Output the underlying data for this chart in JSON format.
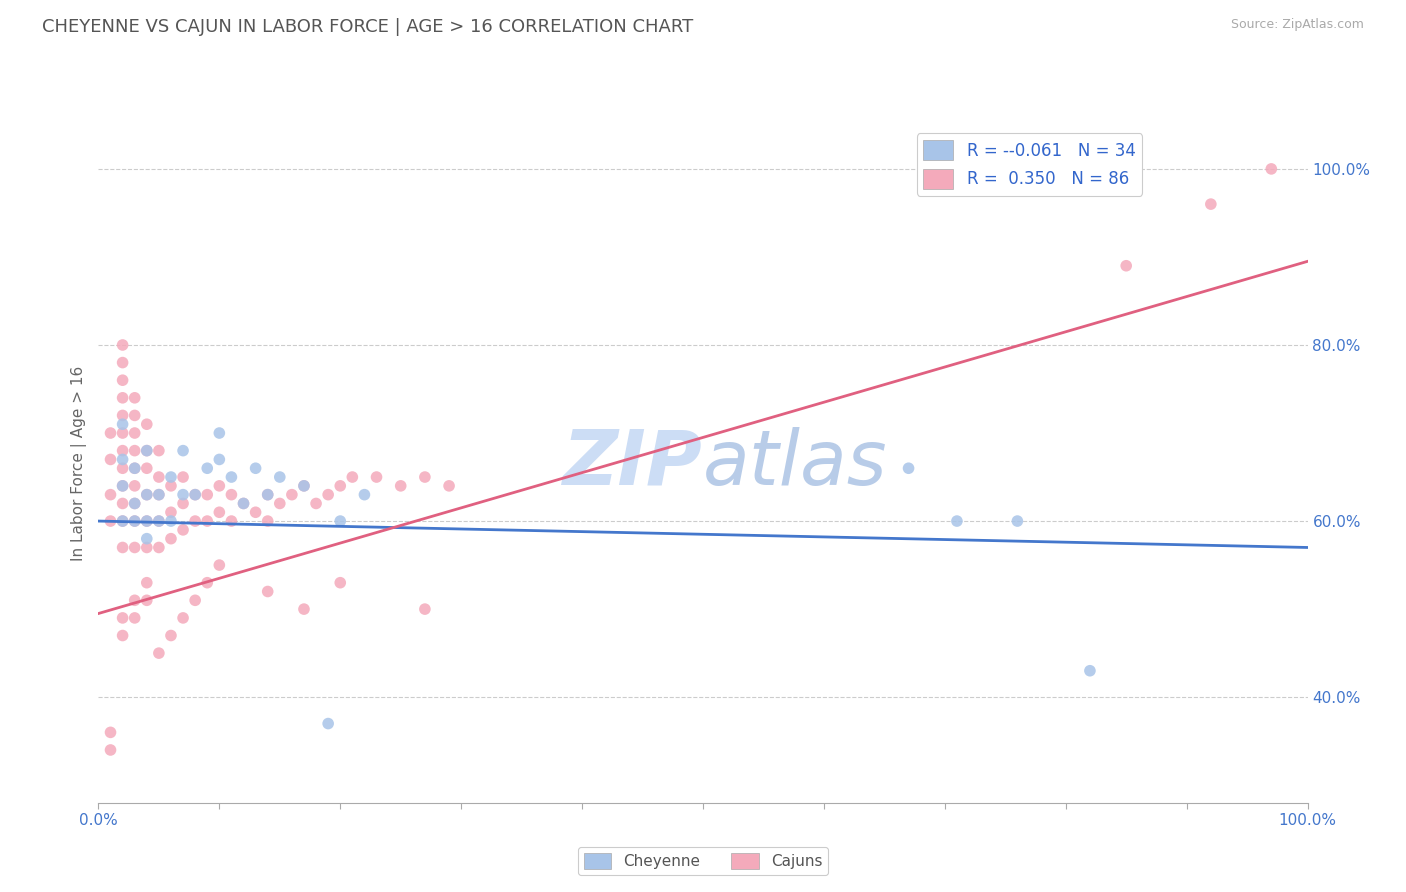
{
  "title": "CHEYENNE VS CAJUN IN LABOR FORCE | AGE > 16 CORRELATION CHART",
  "source": "Source: ZipAtlas.com",
  "ylabel": "In Labor Force | Age > 16",
  "xlim": [
    0.0,
    1.0
  ],
  "ylim": [
    0.28,
    1.05
  ],
  "ytick_right_labels": [
    "40.0%",
    "60.0%",
    "80.0%",
    "100.0%"
  ],
  "ytick_right_values": [
    0.4,
    0.6,
    0.8,
    1.0
  ],
  "legend_r_cheyenne": "-0.061",
  "legend_n_cheyenne": "34",
  "legend_r_cajun": "0.350",
  "legend_n_cajun": "86",
  "cheyenne_color": "#a8c4e8",
  "cajun_color": "#f4aabb",
  "cheyenne_line_color": "#4477cc",
  "cajun_line_color": "#e06080",
  "background_color": "#ffffff",
  "grid_color": "#cccccc",
  "watermark_color": "#ccddf5",
  "cheyenne_x": [
    0.02,
    0.02,
    0.02,
    0.02,
    0.03,
    0.03,
    0.03,
    0.04,
    0.04,
    0.04,
    0.04,
    0.05,
    0.05,
    0.06,
    0.06,
    0.07,
    0.07,
    0.08,
    0.09,
    0.1,
    0.1,
    0.11,
    0.12,
    0.13,
    0.14,
    0.15,
    0.17,
    0.19,
    0.2,
    0.22,
    0.67,
    0.71,
    0.76,
    0.82
  ],
  "cheyenne_y": [
    0.6,
    0.64,
    0.67,
    0.71,
    0.6,
    0.62,
    0.66,
    0.58,
    0.6,
    0.63,
    0.68,
    0.6,
    0.63,
    0.6,
    0.65,
    0.63,
    0.68,
    0.63,
    0.66,
    0.67,
    0.7,
    0.65,
    0.62,
    0.66,
    0.63,
    0.65,
    0.64,
    0.37,
    0.6,
    0.63,
    0.66,
    0.6,
    0.6,
    0.43
  ],
  "cajun_x": [
    0.01,
    0.01,
    0.01,
    0.01,
    0.02,
    0.02,
    0.02,
    0.02,
    0.02,
    0.02,
    0.02,
    0.02,
    0.02,
    0.02,
    0.02,
    0.02,
    0.03,
    0.03,
    0.03,
    0.03,
    0.03,
    0.03,
    0.03,
    0.03,
    0.03,
    0.04,
    0.04,
    0.04,
    0.04,
    0.04,
    0.04,
    0.05,
    0.05,
    0.05,
    0.05,
    0.05,
    0.06,
    0.06,
    0.06,
    0.07,
    0.07,
    0.07,
    0.08,
    0.08,
    0.09,
    0.09,
    0.1,
    0.1,
    0.11,
    0.11,
    0.12,
    0.13,
    0.14,
    0.14,
    0.15,
    0.16,
    0.17,
    0.18,
    0.19,
    0.2,
    0.21,
    0.23,
    0.25,
    0.27,
    0.29,
    0.01,
    0.01,
    0.02,
    0.02,
    0.03,
    0.03,
    0.04,
    0.04,
    0.05,
    0.06,
    0.07,
    0.08,
    0.09,
    0.1,
    0.14,
    0.17,
    0.2,
    0.27,
    0.85,
    0.92,
    0.97
  ],
  "cajun_y": [
    0.6,
    0.63,
    0.67,
    0.7,
    0.57,
    0.6,
    0.62,
    0.64,
    0.66,
    0.68,
    0.7,
    0.72,
    0.74,
    0.76,
    0.78,
    0.8,
    0.57,
    0.6,
    0.62,
    0.64,
    0.66,
    0.68,
    0.7,
    0.72,
    0.74,
    0.57,
    0.6,
    0.63,
    0.66,
    0.68,
    0.71,
    0.57,
    0.6,
    0.63,
    0.65,
    0.68,
    0.58,
    0.61,
    0.64,
    0.59,
    0.62,
    0.65,
    0.6,
    0.63,
    0.6,
    0.63,
    0.61,
    0.64,
    0.6,
    0.63,
    0.62,
    0.61,
    0.6,
    0.63,
    0.62,
    0.63,
    0.64,
    0.62,
    0.63,
    0.64,
    0.65,
    0.65,
    0.64,
    0.65,
    0.64,
    0.36,
    0.34,
    0.49,
    0.47,
    0.51,
    0.49,
    0.53,
    0.51,
    0.45,
    0.47,
    0.49,
    0.51,
    0.53,
    0.55,
    0.52,
    0.5,
    0.53,
    0.5,
    0.89,
    0.96,
    1.0
  ]
}
